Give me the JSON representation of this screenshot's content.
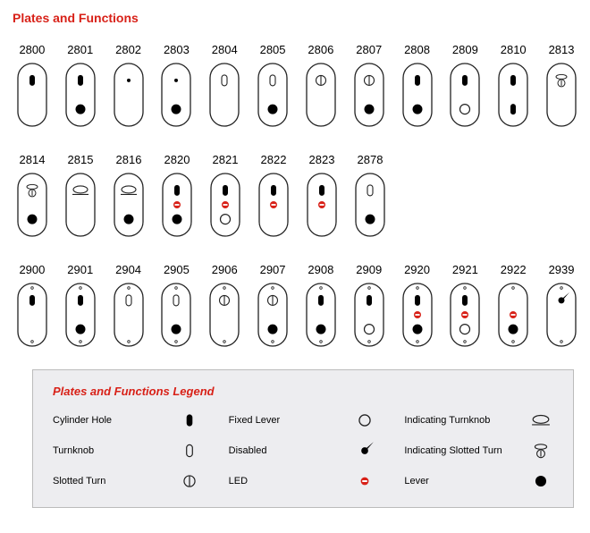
{
  "title": "Plates and Functions",
  "accent_color": "#d82118",
  "plate_border_color": "#222222",
  "led_color": "#d82118",
  "background_color": "#ffffff",
  "legend_bg": "#ededf0",
  "plate": {
    "width": 32,
    "height": 70,
    "rx": 16,
    "series29_screws": true
  },
  "rows": [
    {
      "plates": [
        {
          "code": "2800",
          "series": "28",
          "features": [
            {
              "type": "cylinder",
              "pos": "top"
            }
          ]
        },
        {
          "code": "2801",
          "series": "28",
          "features": [
            {
              "type": "cylinder",
              "pos": "top"
            },
            {
              "type": "lever",
              "pos": "bottom"
            }
          ]
        },
        {
          "code": "2802",
          "series": "28",
          "features": [
            {
              "type": "dot",
              "pos": "top"
            }
          ]
        },
        {
          "code": "2803",
          "series": "28",
          "features": [
            {
              "type": "dot",
              "pos": "top"
            },
            {
              "type": "lever",
              "pos": "bottom"
            }
          ]
        },
        {
          "code": "2804",
          "series": "28",
          "features": [
            {
              "type": "turnknob",
              "pos": "top"
            }
          ]
        },
        {
          "code": "2805",
          "series": "28",
          "features": [
            {
              "type": "turnknob",
              "pos": "top"
            },
            {
              "type": "lever",
              "pos": "bottom"
            }
          ]
        },
        {
          "code": "2806",
          "series": "28",
          "features": [
            {
              "type": "slotted",
              "pos": "top"
            }
          ]
        },
        {
          "code": "2807",
          "series": "28",
          "features": [
            {
              "type": "slotted",
              "pos": "top"
            },
            {
              "type": "lever",
              "pos": "bottom"
            }
          ]
        },
        {
          "code": "2808",
          "series": "28",
          "features": [
            {
              "type": "cylinder",
              "pos": "top"
            },
            {
              "type": "lever",
              "pos": "bottom"
            }
          ]
        },
        {
          "code": "2809",
          "series": "28",
          "features": [
            {
              "type": "cylinder",
              "pos": "top"
            },
            {
              "type": "fixed",
              "pos": "bottom"
            }
          ]
        },
        {
          "code": "2810",
          "series": "28",
          "features": [
            {
              "type": "cylinder",
              "pos": "top"
            },
            {
              "type": "cylinder",
              "pos": "bottom"
            }
          ]
        },
        {
          "code": "2813",
          "series": "28",
          "features": [
            {
              "type": "ind_slot",
              "pos": "top"
            }
          ]
        }
      ]
    },
    {
      "plates": [
        {
          "code": "2814",
          "series": "28",
          "features": [
            {
              "type": "ind_slot",
              "pos": "top"
            },
            {
              "type": "lever",
              "pos": "bottom"
            }
          ]
        },
        {
          "code": "2815",
          "series": "28",
          "features": [
            {
              "type": "ind_knob",
              "pos": "top"
            }
          ]
        },
        {
          "code": "2816",
          "series": "28",
          "features": [
            {
              "type": "ind_knob",
              "pos": "top"
            },
            {
              "type": "lever",
              "pos": "bottom"
            }
          ]
        },
        {
          "code": "2820",
          "series": "28",
          "features": [
            {
              "type": "cylinder",
              "pos": "top"
            },
            {
              "type": "led",
              "pos": "mid"
            },
            {
              "type": "lever",
              "pos": "bottom"
            }
          ]
        },
        {
          "code": "2821",
          "series": "28",
          "features": [
            {
              "type": "cylinder",
              "pos": "top"
            },
            {
              "type": "led",
              "pos": "mid"
            },
            {
              "type": "fixed",
              "pos": "bottom"
            }
          ]
        },
        {
          "code": "2822",
          "series": "28",
          "features": [
            {
              "type": "cylinder",
              "pos": "top"
            },
            {
              "type": "led",
              "pos": "mid"
            }
          ]
        },
        {
          "code": "2823",
          "series": "28",
          "features": [
            {
              "type": "cylinder",
              "pos": "top"
            },
            {
              "type": "led",
              "pos": "mid"
            }
          ]
        },
        {
          "code": "2878",
          "series": "28",
          "features": [
            {
              "type": "turnknob",
              "pos": "top"
            },
            {
              "type": "lever",
              "pos": "bottom"
            }
          ]
        }
      ]
    },
    {
      "plates": [
        {
          "code": "2900",
          "series": "29",
          "features": [
            {
              "type": "cylinder",
              "pos": "top"
            }
          ]
        },
        {
          "code": "2901",
          "series": "29",
          "features": [
            {
              "type": "cylinder",
              "pos": "top"
            },
            {
              "type": "lever",
              "pos": "bottom"
            }
          ]
        },
        {
          "code": "2904",
          "series": "29",
          "features": [
            {
              "type": "turnknob",
              "pos": "top"
            }
          ]
        },
        {
          "code": "2905",
          "series": "29",
          "features": [
            {
              "type": "turnknob",
              "pos": "top"
            },
            {
              "type": "lever",
              "pos": "bottom"
            }
          ]
        },
        {
          "code": "2906",
          "series": "29",
          "features": [
            {
              "type": "slotted",
              "pos": "top"
            }
          ]
        },
        {
          "code": "2907",
          "series": "29",
          "features": [
            {
              "type": "slotted",
              "pos": "top"
            },
            {
              "type": "lever",
              "pos": "bottom"
            }
          ]
        },
        {
          "code": "2908",
          "series": "29",
          "features": [
            {
              "type": "cylinder",
              "pos": "top"
            },
            {
              "type": "lever",
              "pos": "bottom"
            }
          ]
        },
        {
          "code": "2909",
          "series": "29",
          "features": [
            {
              "type": "cylinder",
              "pos": "top"
            },
            {
              "type": "fixed",
              "pos": "bottom"
            }
          ]
        },
        {
          "code": "2920",
          "series": "29",
          "features": [
            {
              "type": "cylinder",
              "pos": "top"
            },
            {
              "type": "led",
              "pos": "mid"
            },
            {
              "type": "lever",
              "pos": "bottom"
            }
          ]
        },
        {
          "code": "2921",
          "series": "29",
          "features": [
            {
              "type": "cylinder",
              "pos": "top"
            },
            {
              "type": "led",
              "pos": "mid"
            },
            {
              "type": "fixed",
              "pos": "bottom"
            }
          ]
        },
        {
          "code": "2922",
          "series": "29",
          "features": [
            {
              "type": "led",
              "pos": "mid"
            },
            {
              "type": "lever",
              "pos": "bottom"
            }
          ]
        },
        {
          "code": "2939",
          "series": "29",
          "features": [
            {
              "type": "disabled",
              "pos": "top"
            }
          ]
        }
      ]
    }
  ],
  "legend": {
    "title": "Plates and Functions Legend",
    "items": [
      {
        "label": "Cylinder Hole",
        "sym": "cylinder"
      },
      {
        "label": "Fixed Lever",
        "sym": "fixed"
      },
      {
        "label": "Indicating Turnknob",
        "sym": "ind_knob"
      },
      {
        "label": "Turnknob",
        "sym": "turnknob"
      },
      {
        "label": "Disabled",
        "sym": "disabled"
      },
      {
        "label": "Indicating Slotted Turn",
        "sym": "ind_slot"
      },
      {
        "label": "Slotted Turn",
        "sym": "slotted"
      },
      {
        "label": "LED",
        "sym": "led"
      },
      {
        "label": "Lever",
        "sym": "lever"
      }
    ]
  }
}
